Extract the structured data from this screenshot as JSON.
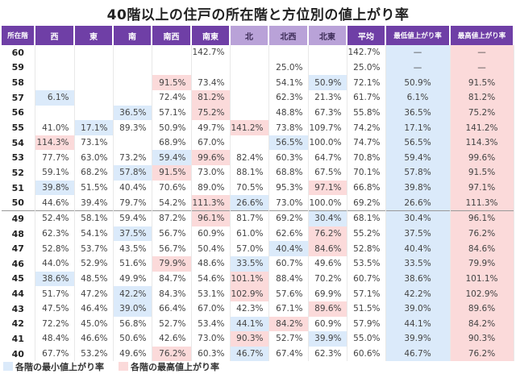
{
  "chart_data": {
    "type": "table",
    "title": "40階以上の住戸の所在階と方位別の値上がり率",
    "columns": [
      "所在階",
      "西",
      "東",
      "南",
      "南西",
      "南東",
      "北",
      "北西",
      "北東",
      "平均",
      "最低値上がり率",
      "最高値上がり率"
    ],
    "light_header_columns": [
      "北",
      "北西",
      "北東"
    ],
    "rows": [
      [
        "60",
        "",
        "",
        "",
        "",
        "142.7%",
        "",
        "",
        "",
        "142.7%",
        "—",
        "—"
      ],
      [
        "59",
        "",
        "",
        "",
        "",
        "",
        "",
        "25.0%",
        "",
        "25.0%",
        "—",
        "—"
      ],
      [
        "58",
        "",
        "",
        "",
        "91.5%",
        "73.4%",
        "",
        "54.1%",
        "50.9%",
        "72.1%",
        "50.9%",
        "91.5%"
      ],
      [
        "57",
        "6.1%",
        "",
        "",
        "72.4%",
        "81.2%",
        "",
        "62.3%",
        "21.3%",
        "61.7%",
        "6.1%",
        "81.2%"
      ],
      [
        "56",
        "",
        "",
        "36.5%",
        "57.1%",
        "75.2%",
        "",
        "48.8%",
        "67.3%",
        "55.8%",
        "36.5%",
        "75.2%"
      ],
      [
        "55",
        "41.0%",
        "17.1%",
        "89.3%",
        "50.9%",
        "49.7%",
        "141.2%",
        "73.8%",
        "109.7%",
        "74.2%",
        "17.1%",
        "141.2%"
      ],
      [
        "54",
        "114.3%",
        "73.1%",
        "",
        "68.9%",
        "67.0%",
        "",
        "56.5%",
        "100.0%",
        "74.7%",
        "56.5%",
        "114.3%"
      ],
      [
        "53",
        "77.7%",
        "63.0%",
        "73.2%",
        "59.4%",
        "99.6%",
        "82.4%",
        "60.3%",
        "64.7%",
        "70.8%",
        "59.4%",
        "99.6%"
      ],
      [
        "52",
        "59.1%",
        "68.2%",
        "57.8%",
        "91.5%",
        "73.0%",
        "88.1%",
        "68.8%",
        "67.5%",
        "70.1%",
        "57.8%",
        "91.5%"
      ],
      [
        "51",
        "39.8%",
        "51.5%",
        "40.4%",
        "70.6%",
        "89.0%",
        "70.5%",
        "95.3%",
        "97.1%",
        "66.8%",
        "39.8%",
        "97.1%"
      ],
      [
        "50",
        "44.6%",
        "39.4%",
        "79.7%",
        "54.2%",
        "111.3%",
        "26.6%",
        "73.0%",
        "100.0%",
        "69.2%",
        "26.6%",
        "111.3%"
      ],
      [
        "49",
        "52.4%",
        "58.1%",
        "59.4%",
        "87.2%",
        "96.1%",
        "81.7%",
        "69.2%",
        "30.4%",
        "68.1%",
        "30.4%",
        "96.1%"
      ],
      [
        "48",
        "62.3%",
        "54.1%",
        "37.5%",
        "56.7%",
        "60.9%",
        "61.0%",
        "62.6%",
        "76.2%",
        "55.2%",
        "37.5%",
        "76.2%"
      ],
      [
        "47",
        "52.8%",
        "53.7%",
        "43.5%",
        "56.7%",
        "50.4%",
        "57.0%",
        "40.4%",
        "84.6%",
        "52.8%",
        "40.4%",
        "84.6%"
      ],
      [
        "46",
        "44.0%",
        "52.9%",
        "51.6%",
        "79.9%",
        "48.6%",
        "33.5%",
        "60.7%",
        "49.6%",
        "53.5%",
        "33.5%",
        "79.9%"
      ],
      [
        "45",
        "38.6%",
        "48.5%",
        "49.9%",
        "84.7%",
        "54.6%",
        "101.1%",
        "88.4%",
        "70.2%",
        "60.7%",
        "38.6%",
        "101.1%"
      ],
      [
        "44",
        "51.7%",
        "47.2%",
        "42.2%",
        "84.3%",
        "53.1%",
        "102.9%",
        "57.6%",
        "69.9%",
        "57.1%",
        "42.2%",
        "102.9%"
      ],
      [
        "43",
        "47.5%",
        "46.4%",
        "39.0%",
        "66.4%",
        "67.0%",
        "42.3%",
        "67.1%",
        "89.6%",
        "51.5%",
        "39.0%",
        "89.6%"
      ],
      [
        "42",
        "72.2%",
        "45.0%",
        "56.8%",
        "52.7%",
        "53.4%",
        "44.1%",
        "84.2%",
        "60.9%",
        "57.9%",
        "44.1%",
        "84.2%"
      ],
      [
        "41",
        "48.4%",
        "46.6%",
        "50.6%",
        "42.6%",
        "73.0%",
        "90.3%",
        "52.7%",
        "39.9%",
        "55.0%",
        "39.9%",
        "90.3%"
      ],
      [
        "40",
        "67.7%",
        "53.2%",
        "49.6%",
        "76.2%",
        "60.3%",
        "46.7%",
        "67.4%",
        "62.3%",
        "60.6%",
        "46.7%",
        "76.2%"
      ]
    ],
    "legend": [
      {
        "label": "各階の最小値上がり率",
        "color": "#dbeafa"
      },
      {
        "label": "各階の最高値上がり率",
        "color": "#fbdada"
      }
    ],
    "colors": {
      "header": "#6f3fa6",
      "header_light": "#b9a2d8",
      "min": "#dbeafa",
      "max": "#fbdada"
    }
  }
}
